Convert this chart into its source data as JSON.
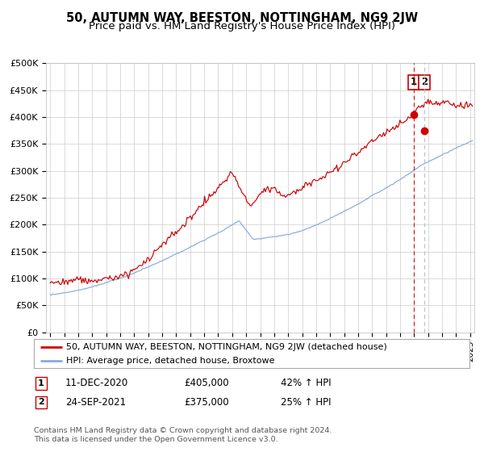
{
  "title": "50, AUTUMN WAY, BEESTON, NOTTINGHAM, NG9 2JW",
  "subtitle": "Price paid vs. HM Land Registry's House Price Index (HPI)",
  "ylim": [
    0,
    500000
  ],
  "yticks": [
    0,
    50000,
    100000,
    150000,
    200000,
    250000,
    300000,
    350000,
    400000,
    450000,
    500000
  ],
  "ytick_labels": [
    "£0",
    "£50K",
    "£100K",
    "£150K",
    "£200K",
    "£250K",
    "£300K",
    "£350K",
    "£400K",
    "£450K",
    "£500K"
  ],
  "x_start_year": 1995,
  "x_end_year": 2025,
  "red_color": "#cc0000",
  "blue_color": "#88aadd",
  "vline1_color": "#cc0000",
  "vline2_color": "#aabbcc",
  "sale1_date_num": 2020.95,
  "sale1_price": 405000,
  "sale2_date_num": 2021.73,
  "sale2_price": 375000,
  "legend_line1": "50, AUTUMN WAY, BEESTON, NOTTINGHAM, NG9 2JW (detached house)",
  "legend_line2": "HPI: Average price, detached house, Broxtowe",
  "annotation1_label": "1",
  "annotation1_date": "11-DEC-2020",
  "annotation1_price": "£405,000",
  "annotation1_hpi": "42% ↑ HPI",
  "annotation2_label": "2",
  "annotation2_date": "24-SEP-2021",
  "annotation2_price": "£375,000",
  "annotation2_hpi": "25% ↑ HPI",
  "footer": "Contains HM Land Registry data © Crown copyright and database right 2024.\nThis data is licensed under the Open Government Licence v3.0.",
  "bg_color": "#ffffff",
  "grid_color": "#cccccc"
}
